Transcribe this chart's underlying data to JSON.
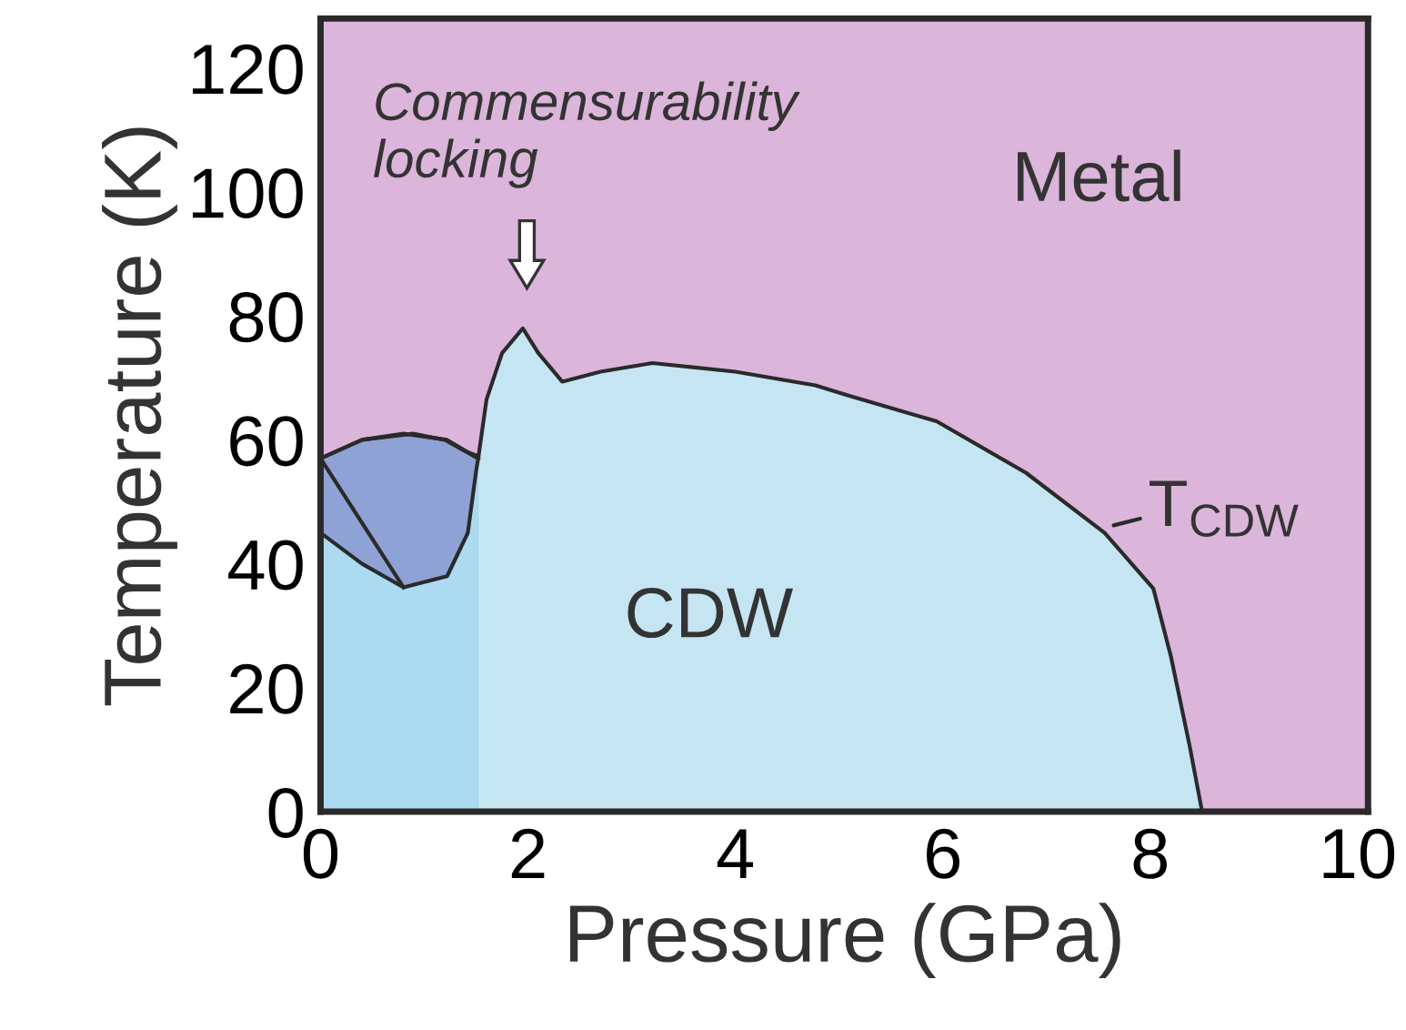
{
  "chart_data": {
    "type": "area",
    "xlabel": "Pressure (GPa)",
    "ylabel": "Temperature (K)",
    "xlim": [
      0,
      10.1
    ],
    "xticks": [
      0,
      2,
      4,
      6,
      8,
      10
    ],
    "ylim": [
      0,
      128
    ],
    "yticks": [
      0,
      20,
      40,
      60,
      80,
      100,
      120
    ],
    "grid": false,
    "legend": false,
    "series": [
      {
        "color": "#c6e5f3",
        "x": [
          0,
          0.4,
          0.89,
          1.2,
          1.52,
          1.6,
          1.75,
          1.95,
          2.1,
          2.33,
          2.7,
          3.2,
          4,
          4.77,
          5.12,
          5.94,
          6.8,
          7.56,
          8.03,
          8.2,
          8.38,
          8.5
        ],
        "values": [
          57,
          60,
          61,
          60,
          57,
          66.5,
          74,
          78,
          74,
          69.4,
          71,
          72.4,
          71,
          68.8,
          67,
          63,
          54.7,
          45,
          36,
          25,
          10.6,
          0
        ]
      },
      {
        "color": "#8fa2d6",
        "x": [
          0,
          0.4,
          0.8,
          1.22,
          1.42,
          1.5,
          1.52
        ],
        "values": [
          57,
          60,
          61,
          60,
          58,
          57.5,
          57
        ]
      },
      {
        "color": "#acdaf0",
        "x": [
          0,
          0.4,
          0.8,
          1.22,
          1.42,
          1.5,
          1.52
        ],
        "values": [
          45,
          40,
          36.2,
          38,
          45,
          55,
          57
        ]
      },
      {
        "type": "line",
        "color": "#2a2a2a",
        "x": [
          0,
          0.8
        ],
        "values": [
          57,
          36.2
        ]
      }
    ],
    "annotations": [
      "Commensurability\nlocking",
      "Metal",
      "CDW",
      {
        "text": "T$_{CDW}$",
        "x": 7.6,
        "y": 46
      }
    ]
  }
}
